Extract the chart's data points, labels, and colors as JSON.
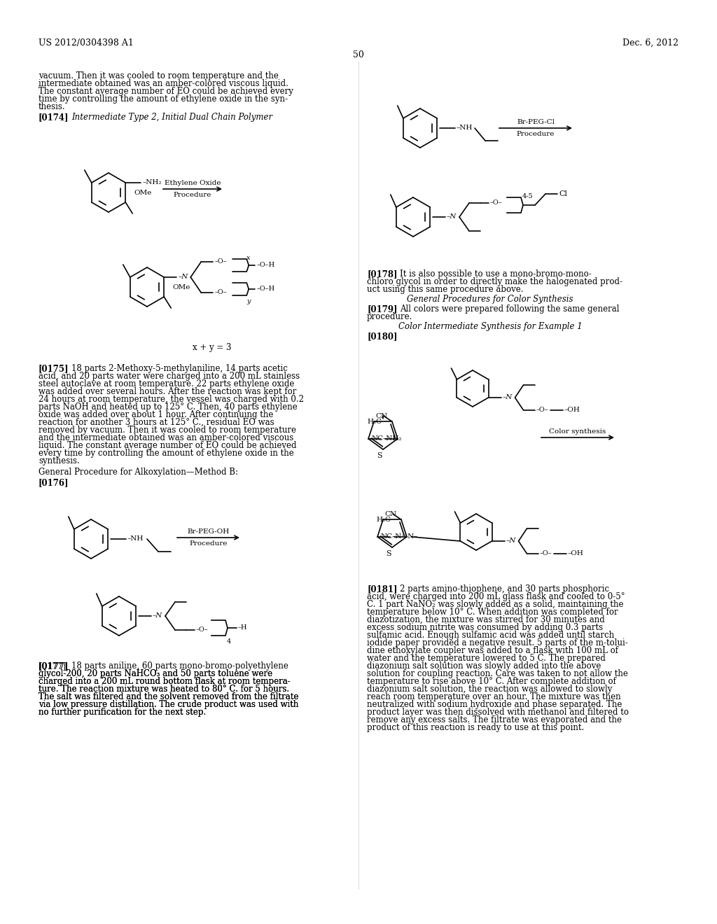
{
  "bg": "#ffffff",
  "header_left": "US 2012/0304398 A1",
  "header_right": "Dec. 6, 2012",
  "page_num": "50"
}
